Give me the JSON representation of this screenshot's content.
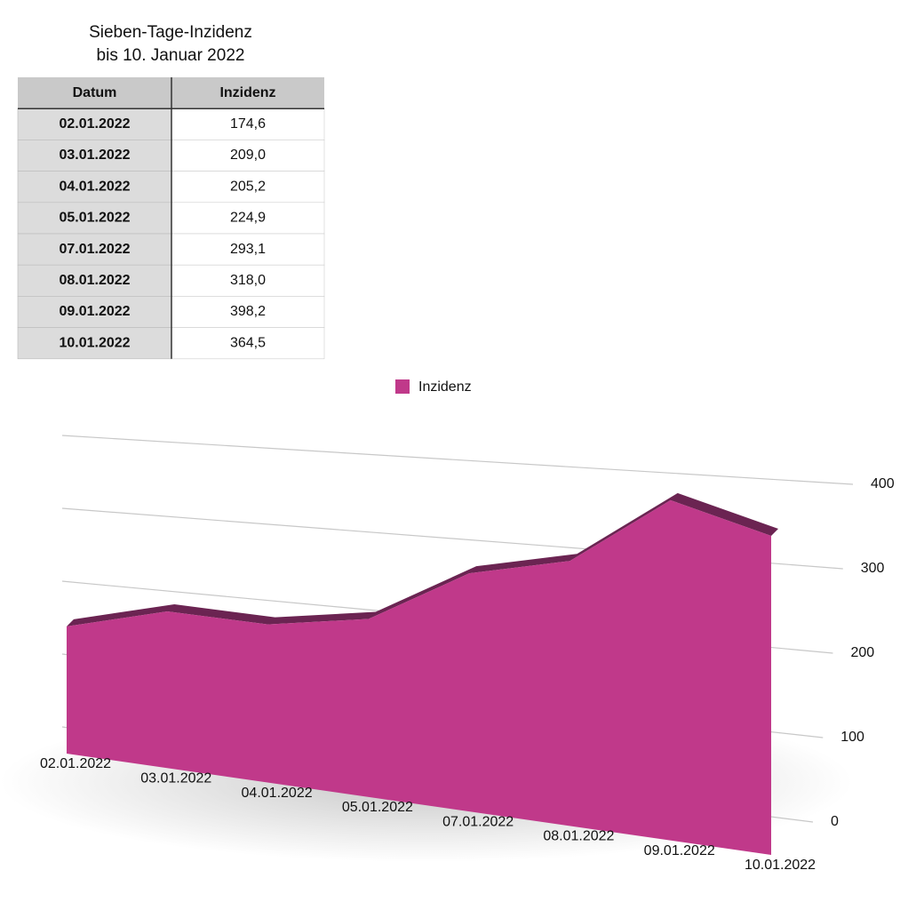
{
  "table": {
    "title": "Sieben-Tage-Inzidenz",
    "subtitle": "bis 10. Januar 2022",
    "header": [
      "Datum",
      "Inzidenz"
    ],
    "rows": [
      [
        "02.01.2022",
        "174,6"
      ],
      [
        "03.01.2022",
        "209,0"
      ],
      [
        "04.01.2022",
        "205,2"
      ],
      [
        "05.01.2022",
        "224,9"
      ],
      [
        "07.01.2022",
        "293,1"
      ],
      [
        "08.01.2022",
        "318,0"
      ],
      [
        "09.01.2022",
        "398,2"
      ],
      [
        "10.01.2022",
        "364,5"
      ]
    ]
  },
  "chart_data": {
    "type": "area",
    "categories": [
      "02.01.2022",
      "03.01.2022",
      "04.01.2022",
      "05.01.2022",
      "07.01.2022",
      "08.01.2022",
      "09.01.2022",
      "10.01.2022"
    ],
    "series": [
      {
        "name": "Inzidenz",
        "color": "#c0398a",
        "values": [
          174.6,
          209.0,
          205.2,
          224.9,
          293.1,
          318.0,
          398.2,
          364.5
        ]
      }
    ],
    "ylim": [
      0,
      400
    ],
    "yticks": [
      0,
      100,
      200,
      300,
      400
    ],
    "grid": true,
    "legend": "top"
  }
}
